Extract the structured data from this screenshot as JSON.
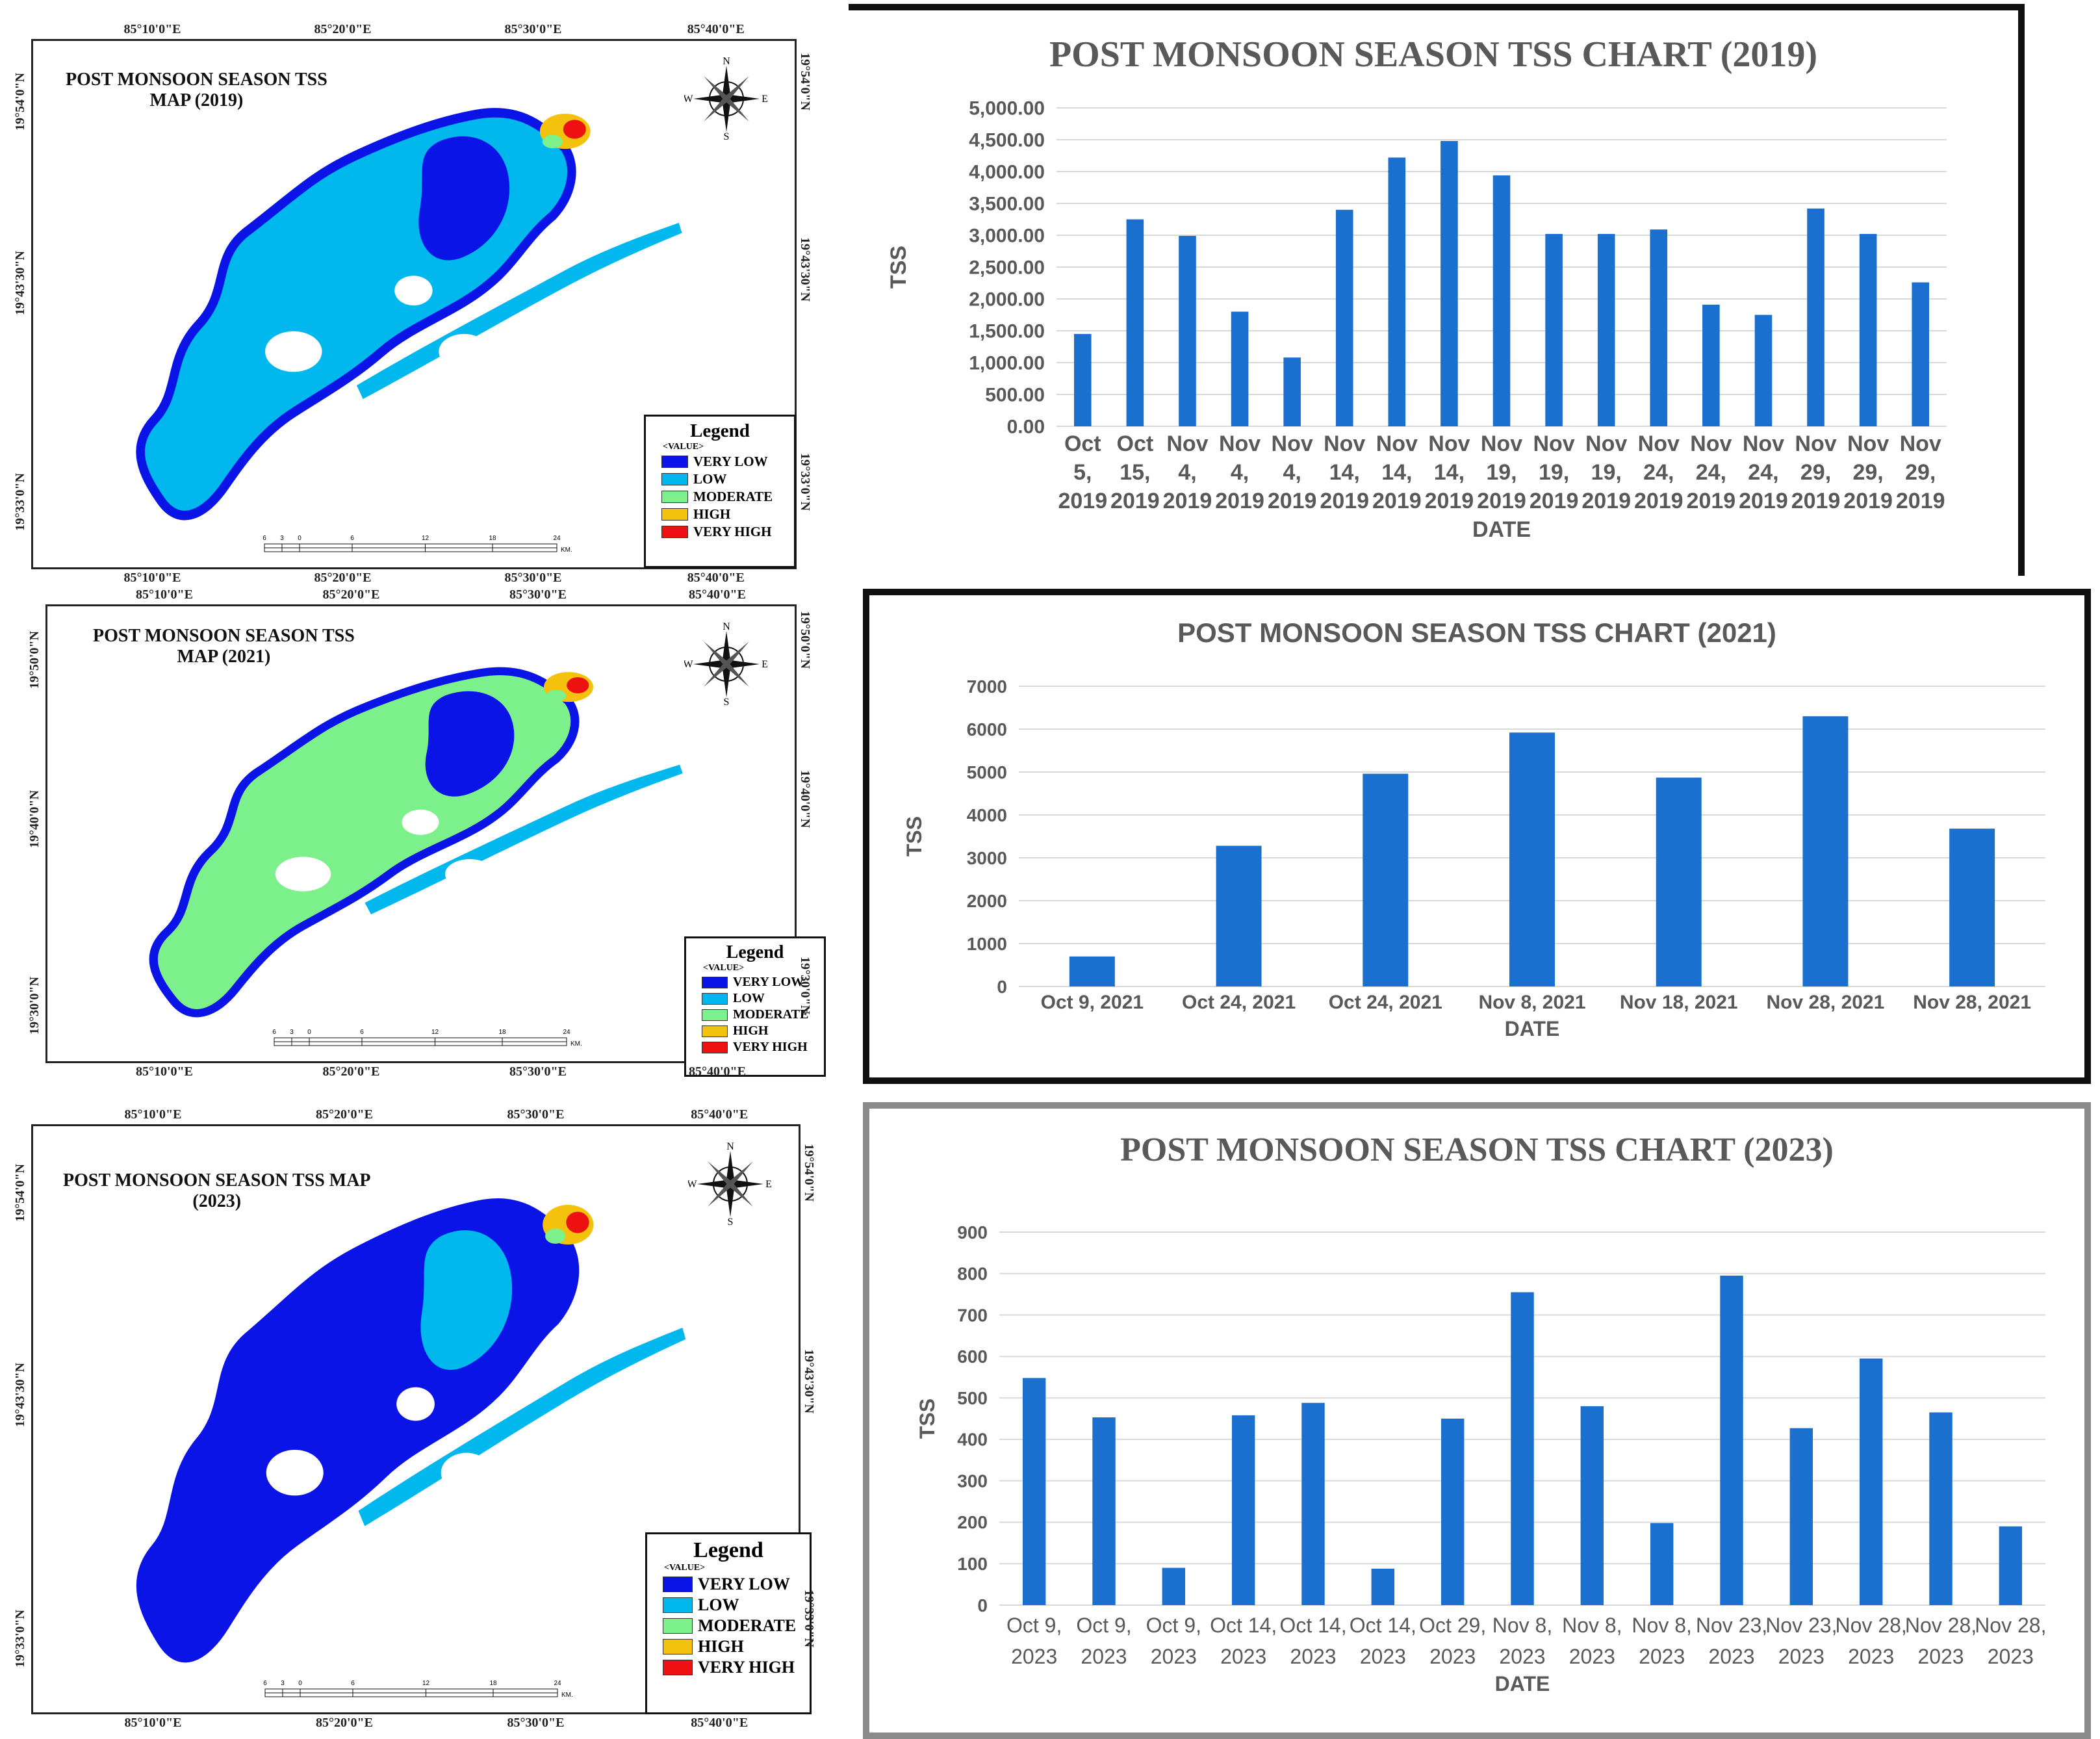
{
  "maps": [
    {
      "title_line1": "POST MONSOON SEASON TSS",
      "title_line2": "MAP  (2019)",
      "top_coords": [
        "85°10'0\"E",
        "85°20'0\"E",
        "85°30'0\"E",
        "85°40'0\"E"
      ],
      "bottom_coords": [
        "85°10'0\"E",
        "85°20'0\"E",
        "85°30'0\"E",
        "85°40'0\"E"
      ],
      "left_coords": [
        "19°54'0\"N",
        "19°43'30\"N",
        "19°33'0\"N"
      ],
      "right_coords": [
        "19°54'0\"N",
        "19°43'30\"N",
        "19°33'0\"N"
      ]
    },
    {
      "title_line1": "POST MONSOON SEASON TSS",
      "title_line2": "MAP (2021)",
      "top_coords": [
        "85°10'0\"E",
        "85°20'0\"E",
        "85°30'0\"E",
        "85°40'0\"E"
      ],
      "bottom_coords": [
        "85°10'0\"E",
        "85°20'0\"E",
        "85°30'0\"E",
        "85°40'0\"E"
      ],
      "left_coords": [
        "19°50'0\"N",
        "19°40'0\"N",
        "19°30'0\"N"
      ],
      "right_coords": [
        "19°50'0\"N",
        "19°40'0\"N",
        "19°30'0\"N"
      ]
    },
    {
      "title_line1": "POST MONSOON SEASON TSS MAP",
      "title_line2": "(2023)",
      "top_coords": [
        "85°10'0\"E",
        "85°20'0\"E",
        "85°30'0\"E",
        "85°40'0\"E"
      ],
      "bottom_coords": [
        "85°10'0\"E",
        "85°20'0\"E",
        "85°30'0\"E",
        "85°40'0\"E"
      ],
      "left_coords": [
        "19°54'0\"N",
        "19°43'30\"N",
        "19°33'0\"N"
      ],
      "right_coords": [
        "19°54'0\"N",
        "19°43'30\"N",
        "19°33'0\"N"
      ]
    }
  ],
  "legend": {
    "title": "Legend",
    "subtitle": "<VALUE>",
    "items": [
      {
        "label": "VERY LOW",
        "color": "#0a14e6"
      },
      {
        "label": "LOW",
        "color": "#00b8ee"
      },
      {
        "label": "MODERATE",
        "color": "#7cf08a"
      },
      {
        "label": "HIGH",
        "color": "#f4c20d"
      },
      {
        "label": "VERY HIGH",
        "color": "#ee1111"
      }
    ]
  },
  "compass": {
    "n": "N",
    "s": "S",
    "e": "E",
    "w": "W"
  },
  "scale": {
    "ticks": [
      "6",
      "3",
      "0",
      "6",
      "12",
      "18",
      "24"
    ],
    "unit": "KM."
  },
  "map_colors": {
    "very_low": "#0a14e6",
    "low": "#00b8ee",
    "moderate": "#7cf08a",
    "high": "#f4c20d",
    "very_high": "#ee1111"
  },
  "bar_color": "#1b6fce",
  "chart_data": [
    {
      "type": "bar",
      "title": "POST MONSOON SEASON TSS CHART (2019)",
      "xlabel": "DATE",
      "ylabel": "TSS",
      "ylim": [
        0,
        5000
      ],
      "yticks": [
        "0.00",
        "500.00",
        "1,000.00",
        "1,500.00",
        "2,000.00",
        "2,500.00",
        "3,000.00",
        "3,500.00",
        "4,000.00",
        "4,500.00",
        "5,000.00"
      ],
      "categories": [
        [
          "Oct",
          "5,",
          "2019"
        ],
        [
          "Oct",
          "15,",
          "2019"
        ],
        [
          "Nov",
          "4,",
          "2019"
        ],
        [
          "Nov",
          "4,",
          "2019"
        ],
        [
          "Nov",
          "4,",
          "2019"
        ],
        [
          "Nov",
          "14,",
          "2019"
        ],
        [
          "Nov",
          "14,",
          "2019"
        ],
        [
          "Nov",
          "14,",
          "2019"
        ],
        [
          "Nov",
          "19,",
          "2019"
        ],
        [
          "Nov",
          "19,",
          "2019"
        ],
        [
          "Nov",
          "19,",
          "2019"
        ],
        [
          "Nov",
          "24,",
          "2019"
        ],
        [
          "Nov",
          "24,",
          "2019"
        ],
        [
          "Nov",
          "24,",
          "2019"
        ],
        [
          "Nov",
          "29,",
          "2019"
        ],
        [
          "Nov",
          "29,",
          "2019"
        ],
        [
          "Nov",
          "29,",
          "2019"
        ]
      ],
      "values": [
        1450,
        3250,
        2990,
        1800,
        1080,
        3400,
        4220,
        4480,
        3940,
        3020,
        3020,
        3090,
        1910,
        1750,
        3420,
        3020,
        2260
      ]
    },
    {
      "type": "bar",
      "title": "POST MONSOON SEASON TSS CHART (2021)",
      "xlabel": "DATE",
      "ylabel": "TSS",
      "ylim": [
        0,
        7000
      ],
      "yticks": [
        "0",
        "1000",
        "2000",
        "3000",
        "4000",
        "5000",
        "6000",
        "7000"
      ],
      "categories": [
        [
          "Oct 9, 2021"
        ],
        [
          "Oct 24, 2021"
        ],
        [
          "Oct 24, 2021"
        ],
        [
          "Nov 8, 2021"
        ],
        [
          "Nov 18, 2021"
        ],
        [
          "Nov 28, 2021"
        ],
        [
          "Nov 28, 2021"
        ]
      ],
      "values": [
        700,
        3280,
        4960,
        5920,
        4870,
        6300,
        3680
      ]
    },
    {
      "type": "bar",
      "title": "POST MONSOON SEASON TSS CHART (2023)",
      "xlabel": "DATE",
      "ylabel": "TSS",
      "ylim": [
        0,
        900
      ],
      "yticks": [
        "0",
        "100",
        "200",
        "300",
        "400",
        "500",
        "600",
        "700",
        "800",
        "900"
      ],
      "categories": [
        [
          "Oct 9,",
          "2023"
        ],
        [
          "Oct 9,",
          "2023"
        ],
        [
          "Oct 9,",
          "2023"
        ],
        [
          "Oct 14,",
          "2023"
        ],
        [
          "Oct 14,",
          "2023"
        ],
        [
          "Oct 14,",
          "2023"
        ],
        [
          "Oct 29,",
          "2023"
        ],
        [
          "Nov 8,",
          "2023"
        ],
        [
          "Nov 8,",
          "2023"
        ],
        [
          "Nov 8,",
          "2023"
        ],
        [
          "Nov 23,",
          "2023"
        ],
        [
          "Nov 23,",
          "2023"
        ],
        [
          "Nov 28,",
          "2023"
        ],
        [
          "Nov 28,",
          "2023"
        ],
        [
          "Nov 28,",
          "2023"
        ]
      ],
      "values": [
        548,
        453,
        90,
        458,
        488,
        88,
        450,
        755,
        480,
        198,
        795,
        427,
        595,
        465,
        190
      ]
    }
  ]
}
